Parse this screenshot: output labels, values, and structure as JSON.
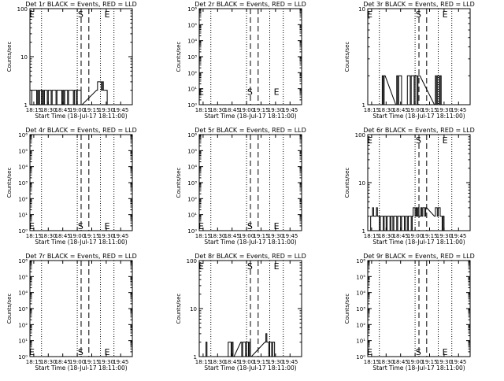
{
  "panel_titles": [
    "Det 1r BLACK = Events, RED = LLD",
    "Det 2r BLACK = Events, RED = LLD",
    "Det 3r BLACK = Events, RED = LLD",
    "Det 4r BLACK = Events, RED = LLD",
    "Det 5r BLACK = Events, RED = LLD",
    "Det 6r BLACK = Events, RED = LLD",
    "Det 7r BLACK = Events, RED = LLD",
    "Det 8r BLACK = Events, RED = LLD",
    "Det 9r BLACK = Events, RED = LLD"
  ],
  "colors": {
    "background": "#ffffff",
    "foreground": "#000000"
  },
  "chart_data": {
    "type": "line",
    "layout": "3x3 grid",
    "xlabel": "Start Time (18-Jul-17 18:11:00)",
    "ylabel": "Counts/sec",
    "x_ticks": [
      "18:15",
      "18:30",
      "18:45",
      "19:00",
      "19:15",
      "19:30",
      "19:45"
    ],
    "x_tick_minutes": [
      15,
      30,
      45,
      60,
      75,
      90,
      105
    ],
    "xlim_minutes": [
      11,
      117
    ],
    "scale": "log",
    "markers": {
      "start": "S",
      "end": "E"
    },
    "panels": [
      {
        "name": "Det 1r",
        "ylim": [
          1,
          100
        ],
        "y_ticks": [
          "1",
          "10",
          "100"
        ],
        "y_tick_values": [
          1,
          10,
          100
        ],
        "dotted_x": [
          23,
          60,
          84,
          98
        ],
        "dashed_x": [
          64,
          72
        ],
        "S": {
          "x": 63.5,
          "y": 100
        },
        "E": [
          {
            "x": 13,
            "y": 100
          },
          {
            "x": 91,
            "y": 100
          }
        ],
        "series": [
          {
            "x": [
              13,
              14,
              15,
              16,
              17,
              18,
              19,
              20,
              21,
              22,
              23,
              24,
              25,
              26,
              27,
              28,
              29,
              30,
              31,
              32,
              33,
              34,
              35,
              36,
              37,
              38,
              39,
              40,
              41,
              42,
              43,
              44,
              45,
              46,
              47,
              48,
              49,
              50,
              51,
              52,
              53,
              54,
              55,
              56,
              57,
              58,
              59,
              60,
              61,
              62,
              63,
              64,
              80,
              81,
              82,
              83,
              84,
              85,
              86,
              87,
              88,
              89,
              90
            ],
            "y": [
              2,
              2,
              2,
              2,
              2,
              1,
              2,
              1,
              2,
              2,
              1,
              2,
              1,
              2,
              2,
              2,
              1,
              2,
              2,
              2,
              1,
              2,
              2,
              2,
              2,
              1,
              2,
              2,
              2,
              2,
              2,
              1,
              2,
              1,
              2,
              2,
              2,
              1,
              2,
              2,
              2,
              2,
              2,
              1,
              2,
              2,
              1,
              2,
              2,
              2,
              2,
              1,
              2,
              3,
              3,
              3,
              3,
              2,
              3,
              2,
              2,
              2,
              2
            ]
          }
        ]
      },
      {
        "name": "Det 2r",
        "ylim": [
          1,
          1000000
        ],
        "y_ticks": [
          "10⁰",
          "10¹",
          "10²",
          "10³",
          "10⁴",
          "10⁵",
          "10⁶"
        ],
        "y_tick_values": [
          1,
          10,
          100,
          1000,
          10000,
          100000,
          1000000
        ],
        "dotted_x": [
          23,
          60,
          84,
          98
        ],
        "dashed_x": [
          64,
          72
        ],
        "S": {
          "x": 63.5,
          "y": 10
        },
        "E": [
          {
            "x": 13,
            "y": 10
          },
          {
            "x": 91,
            "y": 10
          }
        ],
        "series": []
      },
      {
        "name": "Det 3r",
        "ylim": [
          1,
          10
        ],
        "y_ticks": [
          "1",
          "10"
        ],
        "y_tick_values": [
          1,
          10
        ],
        "dotted_x": [
          23,
          60,
          84,
          98
        ],
        "dashed_x": [
          64,
          72
        ],
        "S": {
          "x": 63.5,
          "y": 10
        },
        "E": [
          {
            "x": 13,
            "y": 10
          },
          {
            "x": 91,
            "y": 10
          }
        ],
        "series": [
          {
            "x": [
              25,
              26,
              27,
              28,
              40,
              41,
              42,
              43,
              44,
              45,
              46,
              51,
              52,
              53,
              54,
              55,
              56,
              57,
              58,
              59,
              60,
              61,
              62,
              63,
              64,
              80,
              81,
              82,
              83,
              84,
              85,
              86,
              87,
              88,
              89,
              90
            ],
            "y": [
              1,
              2,
              1,
              2,
              1,
              2,
              1,
              2,
              2,
              2,
              1,
              1,
              2,
              2,
              2,
              1,
              2,
              2,
              2,
              1,
              2,
              2,
              1,
              2,
              2,
              1,
              2,
              1,
              2,
              2,
              1,
              2,
              1,
              1,
              1,
              1
            ]
          }
        ]
      },
      {
        "name": "Det 4r",
        "ylim": [
          1,
          1000000
        ],
        "y_ticks": [
          "10⁰",
          "10¹",
          "10²",
          "10³",
          "10⁴",
          "10⁵",
          "10⁶"
        ],
        "y_tick_values": [
          1,
          10,
          100,
          1000,
          10000,
          100000,
          1000000
        ],
        "dotted_x": [
          23,
          60,
          84,
          98
        ],
        "dashed_x": [
          64,
          72
        ],
        "S": {
          "x": 63.5,
          "y": 1
        },
        "E": [
          {
            "x": 13,
            "y": 1
          },
          {
            "x": 91,
            "y": 1
          }
        ],
        "series": []
      },
      {
        "name": "Det 5r",
        "ylim": [
          1,
          1000000
        ],
        "y_ticks": [
          "10⁰",
          "10¹",
          "10²",
          "10³",
          "10⁴",
          "10⁵",
          "10⁶"
        ],
        "y_tick_values": [
          1,
          10,
          100,
          1000,
          10000,
          100000,
          1000000
        ],
        "dotted_x": [
          23,
          60,
          84,
          98
        ],
        "dashed_x": [
          64,
          72
        ],
        "S": {
          "x": 63.5,
          "y": 1
        },
        "E": [
          {
            "x": 13,
            "y": 1
          },
          {
            "x": 91,
            "y": 1
          }
        ],
        "series": []
      },
      {
        "name": "Det 6r",
        "ylim": [
          1,
          100
        ],
        "y_ticks": [
          "1",
          "10",
          "100"
        ],
        "y_tick_values": [
          1,
          10,
          100
        ],
        "dotted_x": [
          23,
          60,
          84,
          98
        ],
        "dashed_x": [
          64,
          72
        ],
        "S": {
          "x": 63.5,
          "y": 100
        },
        "E": [
          {
            "x": 13,
            "y": 100
          },
          {
            "x": 91,
            "y": 100
          }
        ],
        "series": [
          {
            "x": [
              13,
              14,
              15,
              16,
              17,
              18,
              19,
              20,
              21,
              22,
              23,
              24,
              25,
              26,
              27,
              28,
              29,
              30,
              31,
              32,
              33,
              34,
              35,
              36,
              37,
              38,
              39,
              40,
              41,
              42,
              43,
              44,
              45,
              46,
              47,
              48,
              49,
              50,
              51,
              52,
              53,
              54,
              55,
              56,
              57,
              58,
              59,
              60,
              61,
              62,
              63,
              64,
              65,
              66,
              67,
              68,
              69,
              70,
              71,
              80,
              81,
              82,
              83,
              84,
              85,
              86,
              87,
              88,
              89,
              90,
              91
            ],
            "y": [
              1,
              2,
              2,
              3,
              2,
              2,
              2,
              3,
              2,
              2,
              1,
              2,
              2,
              2,
              1,
              2,
              2,
              1,
              2,
              2,
              2,
              1,
              2,
              2,
              1,
              2,
              2,
              2,
              1,
              2,
              2,
              2,
              1,
              2,
              2,
              2,
              1,
              2,
              2,
              1,
              2,
              2,
              2,
              1,
              2,
              3,
              3,
              2,
              3,
              2,
              3,
              2,
              2,
              3,
              2,
              3,
              3,
              2,
              3,
              2,
              3,
              3,
              2,
              3,
              3,
              2,
              2,
              1,
              2,
              1,
              1
            ]
          }
        ]
      },
      {
        "name": "Det 7r",
        "ylim": [
          1,
          1000000
        ],
        "y_ticks": [
          "10⁰",
          "10¹",
          "10²",
          "10³",
          "10⁴",
          "10⁵",
          "10⁶"
        ],
        "y_tick_values": [
          1,
          10,
          100,
          1000,
          10000,
          100000,
          1000000
        ],
        "dotted_x": [
          23,
          60,
          84,
          98
        ],
        "dashed_x": [
          64,
          72
        ],
        "S": {
          "x": 63.5,
          "y": 1
        },
        "E": [
          {
            "x": 13,
            "y": 1
          },
          {
            "x": 91,
            "y": 1
          }
        ],
        "series": []
      },
      {
        "name": "Det 8r",
        "ylim": [
          1,
          100
        ],
        "y_ticks": [
          "1",
          "10",
          "100"
        ],
        "y_tick_values": [
          1,
          10,
          100
        ],
        "dotted_x": [
          23,
          60,
          84,
          98
        ],
        "dashed_x": [
          64,
          72
        ],
        "S": {
          "x": 63.5,
          "y": 100
        },
        "E": [
          {
            "x": 13,
            "y": 100
          },
          {
            "x": 91,
            "y": 100
          }
        ],
        "series": [
          {
            "x": [
              17,
              18,
              19,
              40,
              41,
              42,
              43,
              44,
              45,
              46,
              54,
              55,
              56,
              57,
              58,
              59,
              60,
              61,
              62,
              63,
              64,
              79,
              80,
              81,
              82,
              83,
              84,
              85,
              86,
              87,
              88,
              89
            ],
            "y": [
              1,
              2,
              1,
              1,
              2,
              2,
              2,
              1,
              2,
              1,
              2,
              1,
              2,
              2,
              2,
              1,
              2,
              2,
              1,
              2,
              1,
              2,
              3,
              2,
              2,
              1,
              2,
              2,
              1,
              2,
              2,
              1
            ]
          }
        ]
      },
      {
        "name": "Det 9r",
        "ylim": [
          1,
          1000000
        ],
        "y_ticks": [
          "10⁰",
          "10¹",
          "10²",
          "10³",
          "10⁴",
          "10⁵",
          "10⁶"
        ],
        "y_tick_values": [
          1,
          10,
          100,
          1000,
          10000,
          100000,
          1000000
        ],
        "dotted_x": [
          23,
          60,
          84,
          98
        ],
        "dashed_x": [
          64,
          72
        ],
        "S": {
          "x": 63.5,
          "y": 1
        },
        "E": [
          {
            "x": 13,
            "y": 1
          },
          {
            "x": 91,
            "y": 1
          }
        ],
        "series": []
      }
    ]
  }
}
